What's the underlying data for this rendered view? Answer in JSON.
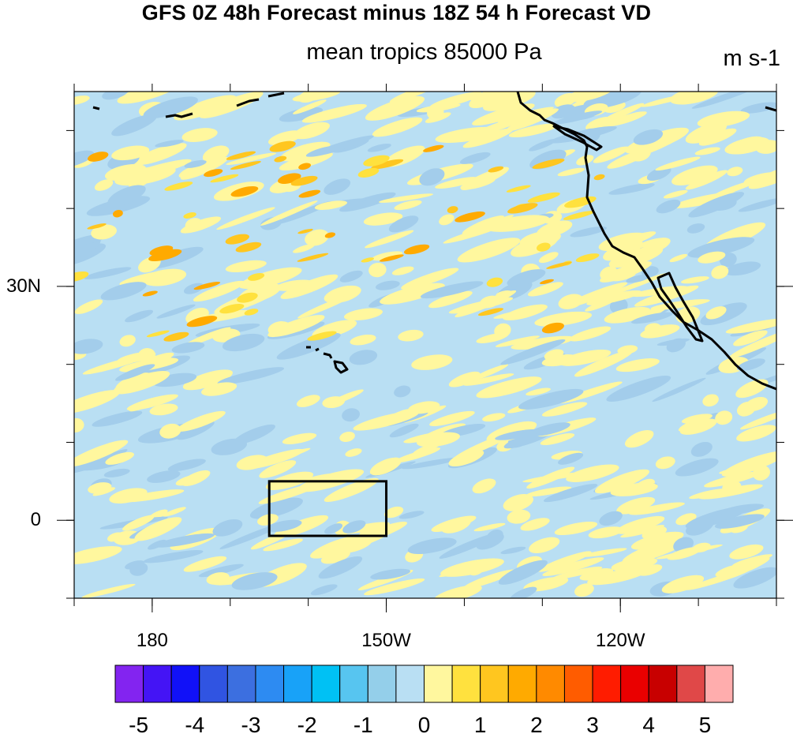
{
  "header": {
    "title": "GFS 0Z 48h Forecast minus 18Z 54 h Forecast VD",
    "subtitle": "mean tropics 85000 Pa",
    "units": "m s-1"
  },
  "map": {
    "projection": "cylindrical-equidistant",
    "lon_range": [
      170,
      260
    ],
    "lat_range": [
      -10,
      55
    ],
    "lon_tick_labels": [
      {
        "lon": 180,
        "label": "180"
      },
      {
        "lon": 210,
        "label": "150W"
      },
      {
        "lon": 240,
        "label": "120W"
      }
    ],
    "lat_tick_labels": [
      {
        "lat": 30,
        "label": "30N"
      },
      {
        "lat": 0,
        "label": "0"
      }
    ],
    "region_box": {
      "lon_min": 195,
      "lon_max": 210,
      "lat_min": -2,
      "lat_max": 5
    },
    "fill_colors": {
      "negative_weak": "#b9dff3",
      "positive_weak": "#fff79e"
    }
  },
  "colorbar": {
    "colors": [
      "#8324f0",
      "#4414f5",
      "#1111f8",
      "#3054e2",
      "#3c6fe0",
      "#2d8bf2",
      "#18a2f8",
      "#00c1f4",
      "#57c5f0",
      "#94cfea",
      "#b9dff3",
      "#fff79e",
      "#ffe13e",
      "#ffc61f",
      "#ffaa00",
      "#ff8a00",
      "#ff5c00",
      "#ff1c00",
      "#ea0000",
      "#c80000",
      "#e04848",
      "#ffadad"
    ],
    "labels": [
      "-5",
      "-4",
      "-3",
      "-2",
      "-1",
      "0",
      "1",
      "2",
      "3",
      "4",
      "5"
    ]
  }
}
